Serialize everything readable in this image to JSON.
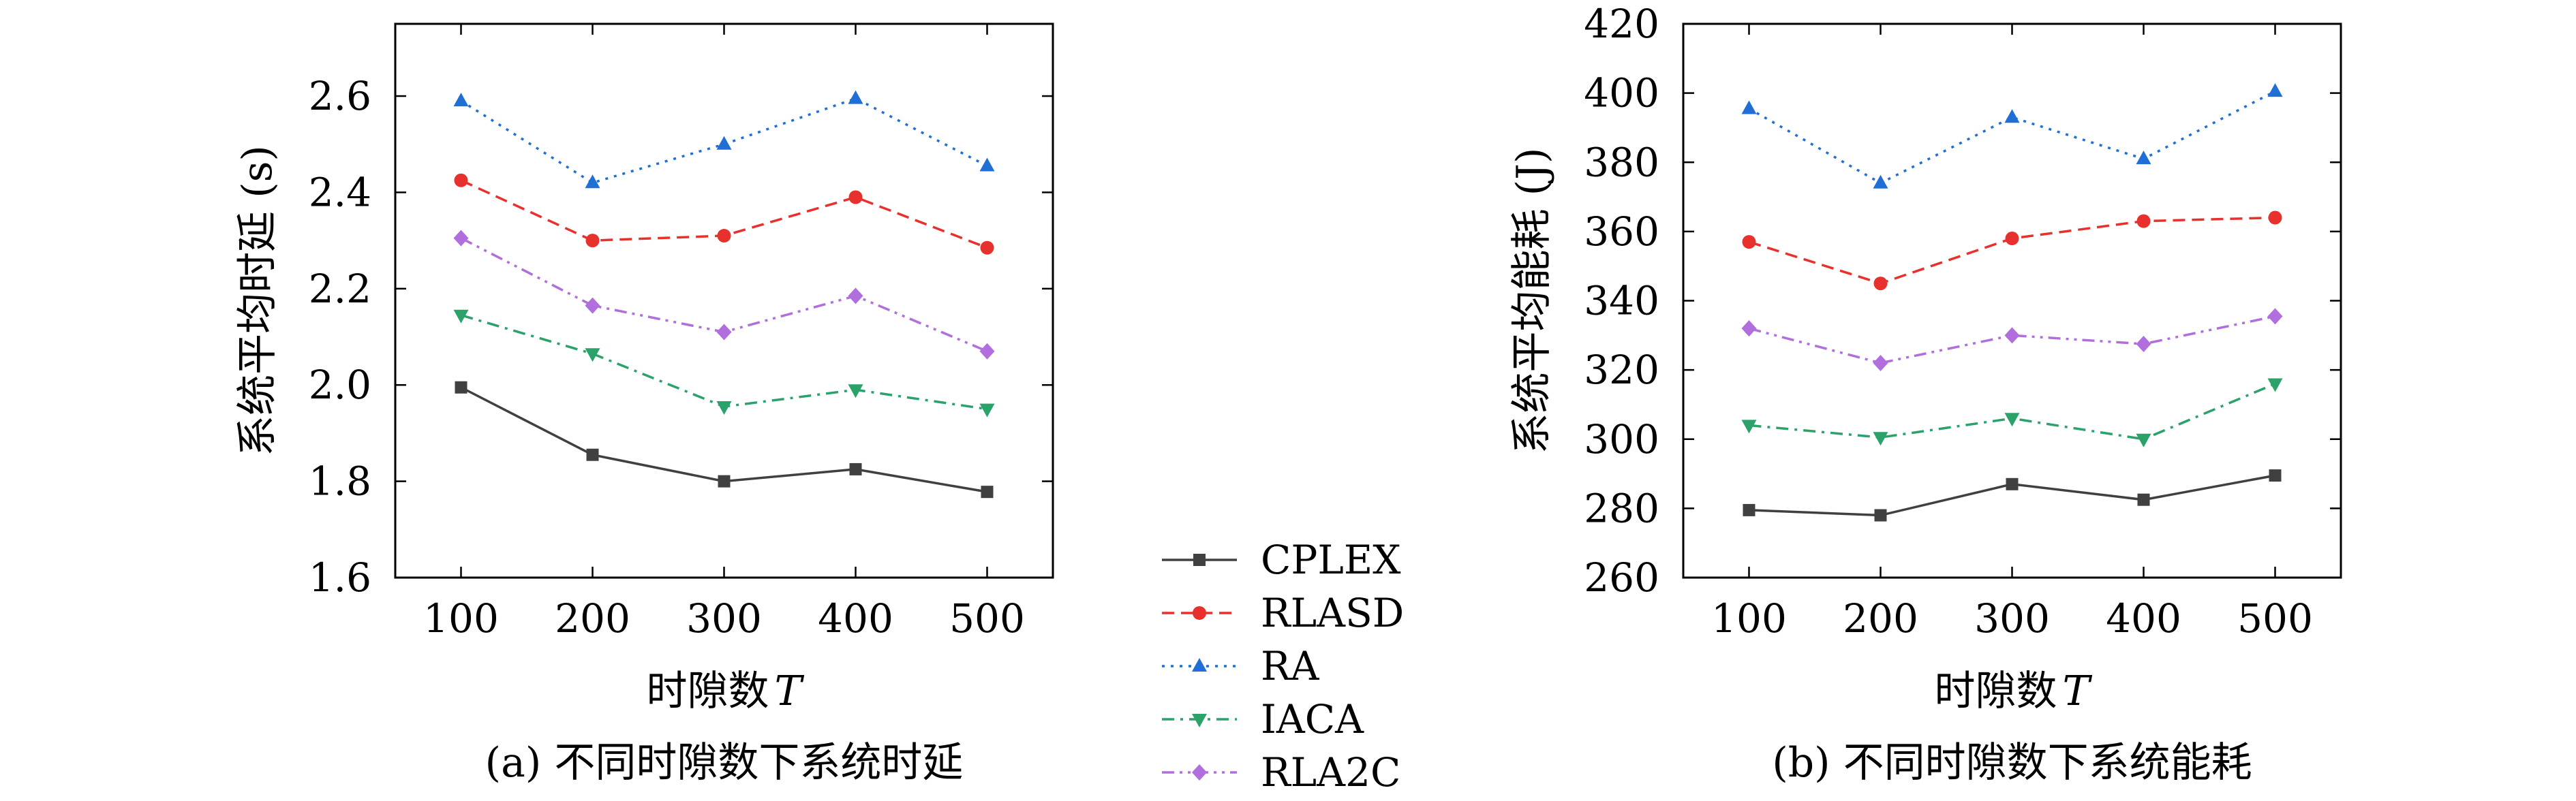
{
  "chart_data": [
    {
      "type": "line",
      "caption": "(a) 不同时隙数下系统时延",
      "xlabel": "时隙数",
      "xlabel_var": "T",
      "ylabel": "系统平均时延 (s)",
      "categories": [
        "100",
        "200",
        "300",
        "400",
        "500"
      ],
      "x": [
        100,
        200,
        300,
        400,
        500
      ],
      "xlim": [
        50,
        550
      ],
      "ylim": [
        1.6,
        2.75
      ],
      "yticks": [
        "1.6",
        "1.8",
        "2.0",
        "2.2",
        "2.4",
        "2.6"
      ],
      "yticks_values": [
        1.6,
        1.8,
        2.0,
        2.2,
        2.4,
        2.6
      ],
      "grid": false,
      "series": [
        {
          "name": "CPLEX",
          "values": [
            1.995,
            1.855,
            1.8,
            1.825,
            1.778
          ]
        },
        {
          "name": "RLASD",
          "values": [
            2.425,
            2.3,
            2.31,
            2.39,
            2.285
          ]
        },
        {
          "name": "RA",
          "values": [
            2.59,
            2.42,
            2.5,
            2.595,
            2.455
          ]
        },
        {
          "name": "IACA",
          "values": [
            2.145,
            2.065,
            1.955,
            1.99,
            1.95
          ]
        },
        {
          "name": "RLA2C",
          "values": [
            2.305,
            2.165,
            2.11,
            2.185,
            2.07
          ]
        }
      ]
    },
    {
      "type": "line",
      "caption": "(b) 不同时隙数下系统能耗",
      "xlabel": "时隙数",
      "xlabel_var": "T",
      "ylabel": "系统平均能耗 (J)",
      "categories": [
        "100",
        "200",
        "300",
        "400",
        "500"
      ],
      "x": [
        100,
        200,
        300,
        400,
        500
      ],
      "xlim": [
        50,
        550
      ],
      "ylim": [
        260,
        420
      ],
      "yticks": [
        "260",
        "280",
        "300",
        "320",
        "340",
        "360",
        "380",
        "400",
        "420"
      ],
      "yticks_values": [
        260,
        280,
        300,
        320,
        340,
        360,
        380,
        400,
        420
      ],
      "grid": false,
      "series": [
        {
          "name": "CPLEX",
          "values": [
            279.5,
            278,
            287,
            282.5,
            289.5
          ]
        },
        {
          "name": "RLASD",
          "values": [
            357,
            345,
            358,
            363,
            364
          ]
        },
        {
          "name": "RA",
          "values": [
            395.5,
            374,
            393,
            381,
            400.5
          ]
        },
        {
          "name": "IACA",
          "values": [
            304,
            300.5,
            306,
            300,
            316
          ]
        },
        {
          "name": "RLA2C",
          "values": [
            332,
            322,
            330,
            327.5,
            335.5
          ]
        }
      ]
    }
  ],
  "legend": {
    "placement": "between-panels-bottom",
    "items": [
      {
        "name": "CPLEX",
        "color": "#404040",
        "dash": "solid",
        "marker": "square"
      },
      {
        "name": "RLASD",
        "color": "#e8312c",
        "dash": "dashed",
        "marker": "circle"
      },
      {
        "name": "RA",
        "color": "#1f6fd6",
        "dash": "dotted",
        "marker": "triangle-up"
      },
      {
        "name": "IACA",
        "color": "#2aa26a",
        "dash": "dashdot",
        "marker": "triangle-down"
      },
      {
        "name": "RLA2C",
        "color": "#b06fdc",
        "dash": "dashdotdot",
        "marker": "diamond"
      }
    ]
  }
}
